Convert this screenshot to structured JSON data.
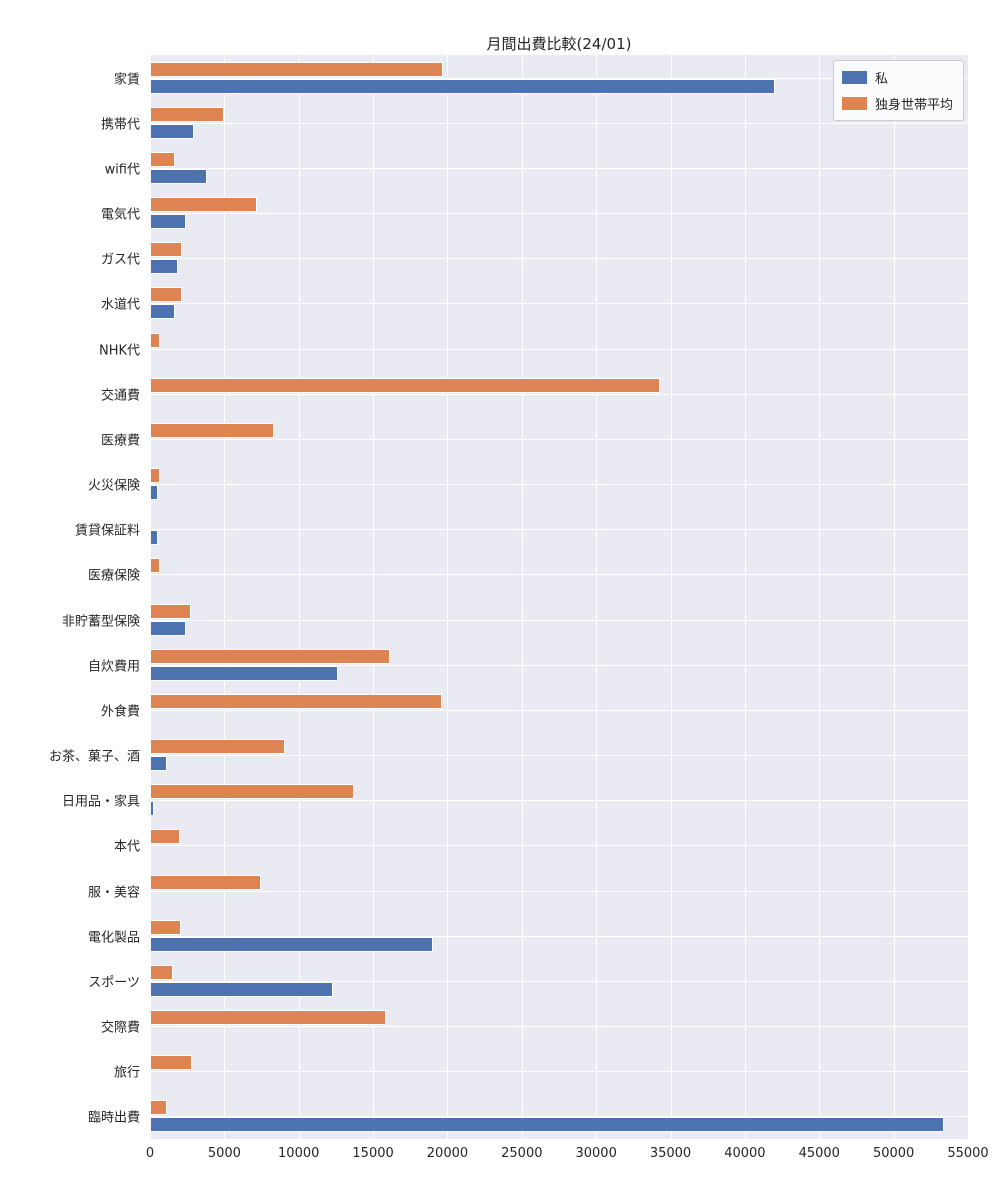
{
  "chart_data": {
    "type": "bar",
    "orientation": "horizontal",
    "title": "月間出費比較(24/01)",
    "categories": [
      "家賃",
      "携帯代",
      "wifi代",
      "電気代",
      "ガス代",
      "水道代",
      "NHK代",
      "交通費",
      "医療費",
      "火災保険",
      "賃貸保証料",
      "医療保険",
      "非貯蓄型保険",
      "自炊費用",
      "外食費",
      "お茶、菓子、酒",
      "日用品・家具",
      "本代",
      "服・美容",
      "電化製品",
      "スポーツ",
      "交際費",
      "旅行",
      "臨時出費"
    ],
    "series": [
      {
        "name": "私",
        "color": "#4C72B0",
        "values": [
          42000,
          2930,
          3800,
          2450,
          1850,
          1650,
          0,
          0,
          0,
          550,
          550,
          0,
          2450,
          12640,
          0,
          1110,
          300,
          0,
          0,
          19010,
          12300,
          0,
          0,
          53400
        ]
      },
      {
        "name": "独身世帯平均",
        "color": "#DD8452",
        "values": [
          19700,
          5000,
          1650,
          7170,
          2120,
          2170,
          650,
          34300,
          8330,
          700,
          0,
          700,
          2790,
          16160,
          19600,
          9050,
          13690,
          1990,
          7440,
          2070,
          1580,
          15850,
          2810,
          1130
        ]
      }
    ],
    "xlim": [
      0,
      55000
    ],
    "x_ticks": [
      0,
      5000,
      10000,
      15000,
      20000,
      25000,
      30000,
      35000,
      40000,
      45000,
      50000,
      55000
    ],
    "grid": true,
    "legend_position": "upper right",
    "plot_bg_color": "#EAEAF2",
    "grid_color": "#ffffff",
    "text_color": "#262626"
  }
}
